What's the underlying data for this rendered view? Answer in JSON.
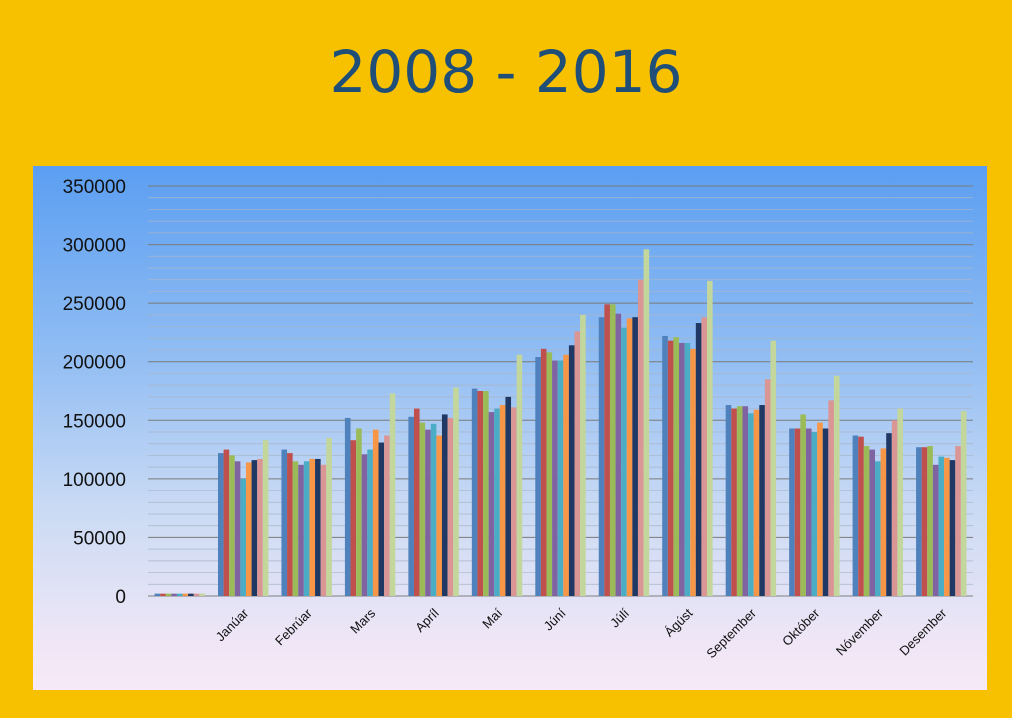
{
  "title": "2008 - 2016",
  "colors": {
    "background": "#f8c100",
    "title": "#1f4e79",
    "series": [
      "#4f81bd",
      "#c0504d",
      "#9bbb59",
      "#8064a2",
      "#4bacc6",
      "#f79646",
      "#1f3864",
      "#d99694",
      "#c3d69b"
    ]
  },
  "chart_data": {
    "type": "bar",
    "title": "",
    "xlabel": "",
    "ylabel": "",
    "ylim": [
      0,
      350000
    ],
    "yticks": [
      "0",
      "50000",
      "100000",
      "150000",
      "200000",
      "250000",
      "300000",
      "350000"
    ],
    "grid": true,
    "legend": "none",
    "categories": [
      "",
      "Janúar",
      "Febrúar",
      "Mars",
      "Apríl",
      "Maí",
      "Júní",
      "Júlí",
      "Ágúst",
      "September",
      "Október",
      "Nóvember",
      "Desember"
    ],
    "series": [
      {
        "values": [
          2000,
          122000,
          125000,
          152000,
          153000,
          177000,
          204000,
          238000,
          222000,
          163000,
          143000,
          137000,
          127000
        ]
      },
      {
        "values": [
          2000,
          125000,
          122000,
          133000,
          160000,
          175000,
          211000,
          249000,
          218000,
          160000,
          143000,
          136000,
          127000
        ]
      },
      {
        "values": [
          2000,
          120000,
          115000,
          143000,
          148000,
          175000,
          208000,
          249000,
          221000,
          162000,
          155000,
          128000,
          128000
        ]
      },
      {
        "values": [
          2000,
          115000,
          112000,
          121000,
          142000,
          157000,
          201000,
          241000,
          216000,
          162000,
          143000,
          125000,
          112000
        ]
      },
      {
        "values": [
          2000,
          100000,
          115000,
          125000,
          147000,
          160000,
          201000,
          229000,
          216000,
          156000,
          140000,
          115000,
          119000
        ]
      },
      {
        "values": [
          2000,
          114000,
          117000,
          142000,
          137000,
          163000,
          206000,
          237000,
          211000,
          159000,
          148000,
          126000,
          118000
        ]
      },
      {
        "values": [
          2000,
          116000,
          117000,
          131000,
          155000,
          170000,
          214000,
          238000,
          233000,
          163000,
          143000,
          139000,
          116000
        ]
      },
      {
        "values": [
          2000,
          117000,
          112000,
          137000,
          152000,
          161000,
          226000,
          270000,
          238000,
          185000,
          167000,
          150000,
          128000
        ]
      },
      {
        "values": [
          2000,
          133000,
          135000,
          173000,
          178000,
          206000,
          240000,
          296000,
          269000,
          218000,
          188000,
          160000,
          158000
        ]
      }
    ]
  }
}
